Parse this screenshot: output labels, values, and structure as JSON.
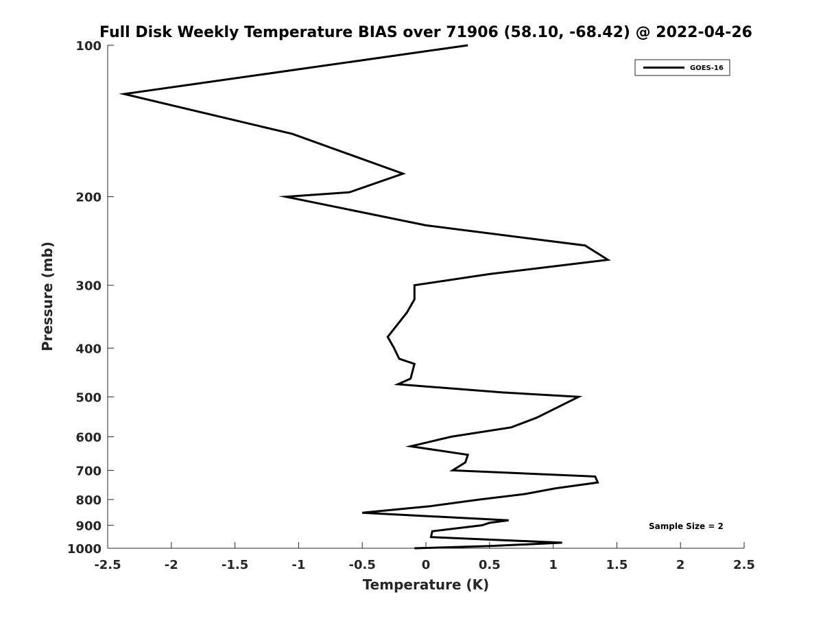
{
  "chart_data": {
    "type": "line",
    "title": "Full Disk Weekly Temperature BIAS over 71906 (58.10, -68.42) @ 2022-04-26",
    "xlabel": "Temperature (K)",
    "ylabel": "Pressure (mb)",
    "xlim": [
      -2.5,
      2.5
    ],
    "ylim": [
      100,
      1000
    ],
    "y_scale": "log",
    "y_reversed": true,
    "x_ticks": [
      -2.5,
      -2,
      -1.5,
      -1,
      -0.5,
      0,
      0.5,
      1,
      1.5,
      2,
      2.5
    ],
    "x_tick_labels": [
      "-2.5",
      "-2",
      "-1.5",
      "-1",
      "-0.5",
      "0",
      "0.5",
      "1",
      "1.5",
      "2",
      "2.5"
    ],
    "y_ticks": [
      100,
      200,
      300,
      400,
      500,
      600,
      700,
      800,
      900,
      1000
    ],
    "y_tick_labels": [
      "100",
      "200",
      "300",
      "400",
      "500",
      "600",
      "700",
      "800",
      "900",
      "1000"
    ],
    "grid": false,
    "legend_position": "top-right",
    "annotation": "Sample Size = 2",
    "series": [
      {
        "name": "GOES-16",
        "color": "#000000",
        "points": [
          [
            0.33,
            100
          ],
          [
            -2.37,
            125
          ],
          [
            -1.05,
            150
          ],
          [
            -0.18,
            180
          ],
          [
            -0.6,
            196
          ],
          [
            -1.1,
            200
          ],
          [
            0.0,
            228
          ],
          [
            1.25,
            250
          ],
          [
            1.43,
            267
          ],
          [
            0.5,
            285
          ],
          [
            -0.09,
            300
          ],
          [
            -0.09,
            320
          ],
          [
            -0.15,
            340
          ],
          [
            -0.3,
            380
          ],
          [
            -0.25,
            400
          ],
          [
            -0.21,
            420
          ],
          [
            -0.09,
            430
          ],
          [
            -0.12,
            460
          ],
          [
            -0.22,
            472
          ],
          [
            0.6,
            490
          ],
          [
            1.2,
            500
          ],
          [
            0.87,
            550
          ],
          [
            0.67,
            575
          ],
          [
            0.2,
            600
          ],
          [
            -0.12,
            627
          ],
          [
            0.33,
            652
          ],
          [
            0.31,
            675
          ],
          [
            0.21,
            700
          ],
          [
            1.33,
            720
          ],
          [
            1.35,
            740
          ],
          [
            1.02,
            760
          ],
          [
            0.78,
            780
          ],
          [
            0.42,
            800
          ],
          [
            0.03,
            825
          ],
          [
            -0.5,
            850
          ],
          [
            0.65,
            880
          ],
          [
            0.5,
            890
          ],
          [
            0.44,
            900
          ],
          [
            0.05,
            925
          ],
          [
            0.04,
            950
          ],
          [
            1.07,
            975
          ],
          [
            0.5,
            990
          ],
          [
            -0.09,
            1000
          ]
        ]
      }
    ]
  }
}
